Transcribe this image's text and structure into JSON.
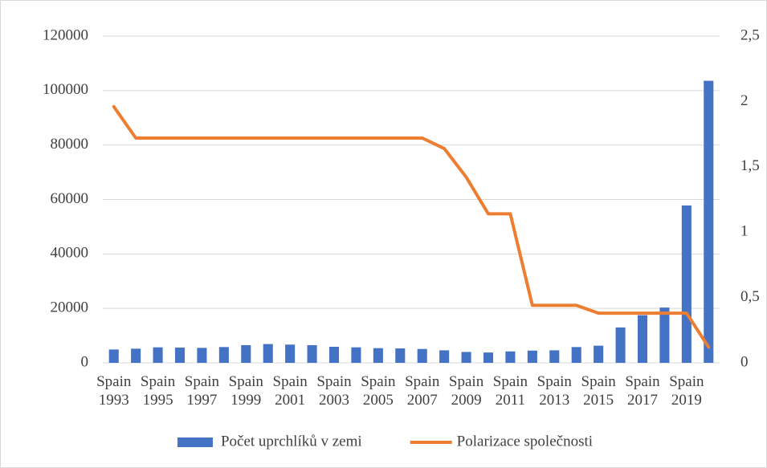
{
  "chart_data": {
    "type": "combo",
    "categories": [
      "Spain 1993",
      null,
      "Spain 1995",
      null,
      "Spain 1997",
      null,
      "Spain 1999",
      null,
      "Spain 2001",
      null,
      "Spain 2003",
      null,
      "Spain 2005",
      null,
      "Spain 2007",
      null,
      "Spain 2009",
      null,
      "Spain 2011",
      null,
      "Spain 2013",
      null,
      "Spain 2015",
      null,
      "Spain 2017",
      null,
      "Spain 2019",
      null
    ],
    "series": [
      {
        "name": "Počet uprchlíků v zemi",
        "type": "bar",
        "color": "#4472c4",
        "values": [
          4900,
          5200,
          5700,
          5600,
          5500,
          5800,
          6500,
          6900,
          6700,
          6500,
          5900,
          5700,
          5400,
          5300,
          5100,
          4600,
          4000,
          3800,
          4200,
          4500,
          4600,
          5800,
          6300,
          13000,
          17500,
          20300,
          57800,
          103600
        ]
      },
      {
        "name": "Polarizace společnosti",
        "type": "line",
        "axis": "y2",
        "color": "#ed7d31",
        "values": [
          1.96,
          1.72,
          1.72,
          1.72,
          1.72,
          1.72,
          1.72,
          1.72,
          1.72,
          1.72,
          1.72,
          1.72,
          1.72,
          1.72,
          1.72,
          1.64,
          1.42,
          1.14,
          1.14,
          0.44,
          0.44,
          0.44,
          0.38,
          0.38,
          0.38,
          0.38,
          0.38,
          0.12
        ]
      }
    ],
    "ylim": [
      0,
      120000
    ],
    "yticks": [
      0,
      20000,
      40000,
      60000,
      80000,
      100000,
      120000
    ],
    "y2lim": [
      0,
      2.5
    ],
    "y2ticks": [
      0,
      {
        "value": 0.5,
        "label": "0,5"
      },
      1,
      {
        "value": 1.5,
        "label": "1,5"
      },
      2,
      {
        "value": 2.5,
        "label": "2,5"
      }
    ],
    "grid": true,
    "legend": "bottom"
  }
}
